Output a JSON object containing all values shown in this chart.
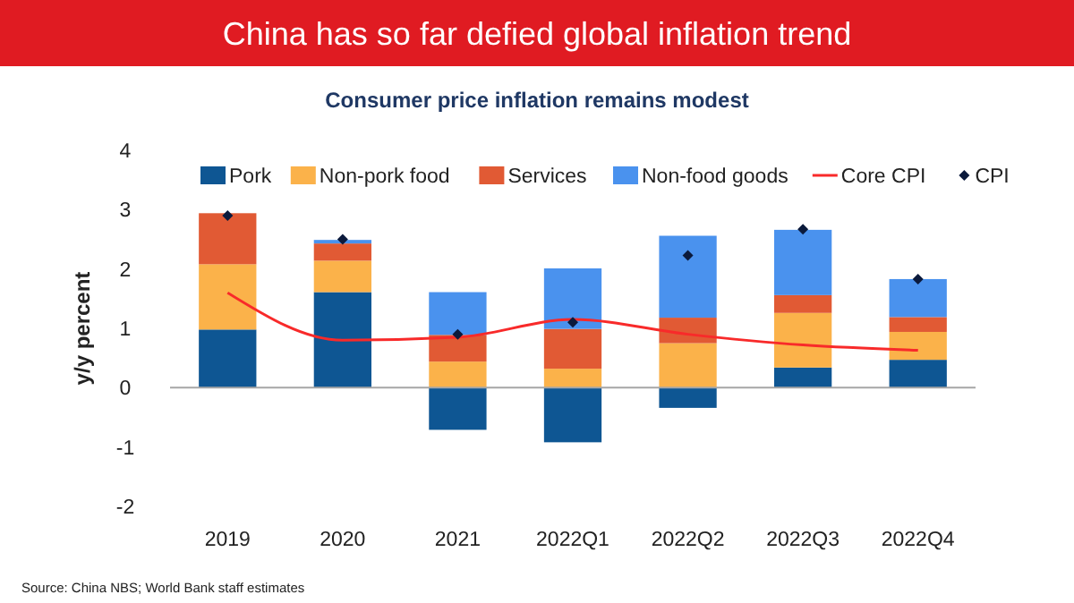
{
  "chart_data": {
    "type": "bar",
    "title": "China has so far defied global inflation trend",
    "subtitle": "Consumer price inflation remains modest",
    "ylabel": "y/y percent",
    "categories": [
      "2019",
      "2020",
      "2021",
      "2022Q1",
      "2022Q2",
      "2022Q3",
      "2022Q4"
    ],
    "stacked": true,
    "ylim": [
      -2,
      4
    ],
    "yticks": [
      -2,
      -1,
      0,
      1,
      2,
      3,
      4
    ],
    "ref_lines": [
      {
        "axis": "y",
        "value": 0,
        "color": "#a6a6a6"
      }
    ],
    "legend": "top",
    "annotations": [
      "Source: China NBS; World Bank staff estimates"
    ],
    "series": [
      {
        "name": "Pork",
        "color": "#0e5693",
        "values": [
          0.98,
          1.61,
          -0.71,
          -0.92,
          -0.34,
          0.34,
          0.47
        ]
      },
      {
        "name": "Non-pork food",
        "color": "#fbb24a",
        "values": [
          1.1,
          0.53,
          0.44,
          0.32,
          0.75,
          0.92,
          0.47
        ]
      },
      {
        "name": "Services",
        "color": "#e15a34",
        "values": [
          0.86,
          0.29,
          0.45,
          0.67,
          0.43,
          0.3,
          0.25
        ]
      },
      {
        "name": "Non-food goods",
        "color": "#4a92ee",
        "values": [
          0,
          0.06,
          0.72,
          1.02,
          1.38,
          1.1,
          0.64
        ]
      },
      {
        "name": "Core CPI",
        "type": "line",
        "color": "#f82a2a",
        "line_style": "solid",
        "marker": "none",
        "values": [
          1.6,
          0.8,
          0.85,
          1.15,
          0.9,
          0.72,
          0.63
        ]
      },
      {
        "name": "CPI",
        "type": "scatter",
        "color": "#0b1a3c",
        "marker": "diamond",
        "values": [
          2.9,
          2.5,
          0.9,
          1.1,
          2.23,
          2.67,
          1.83
        ]
      }
    ]
  }
}
